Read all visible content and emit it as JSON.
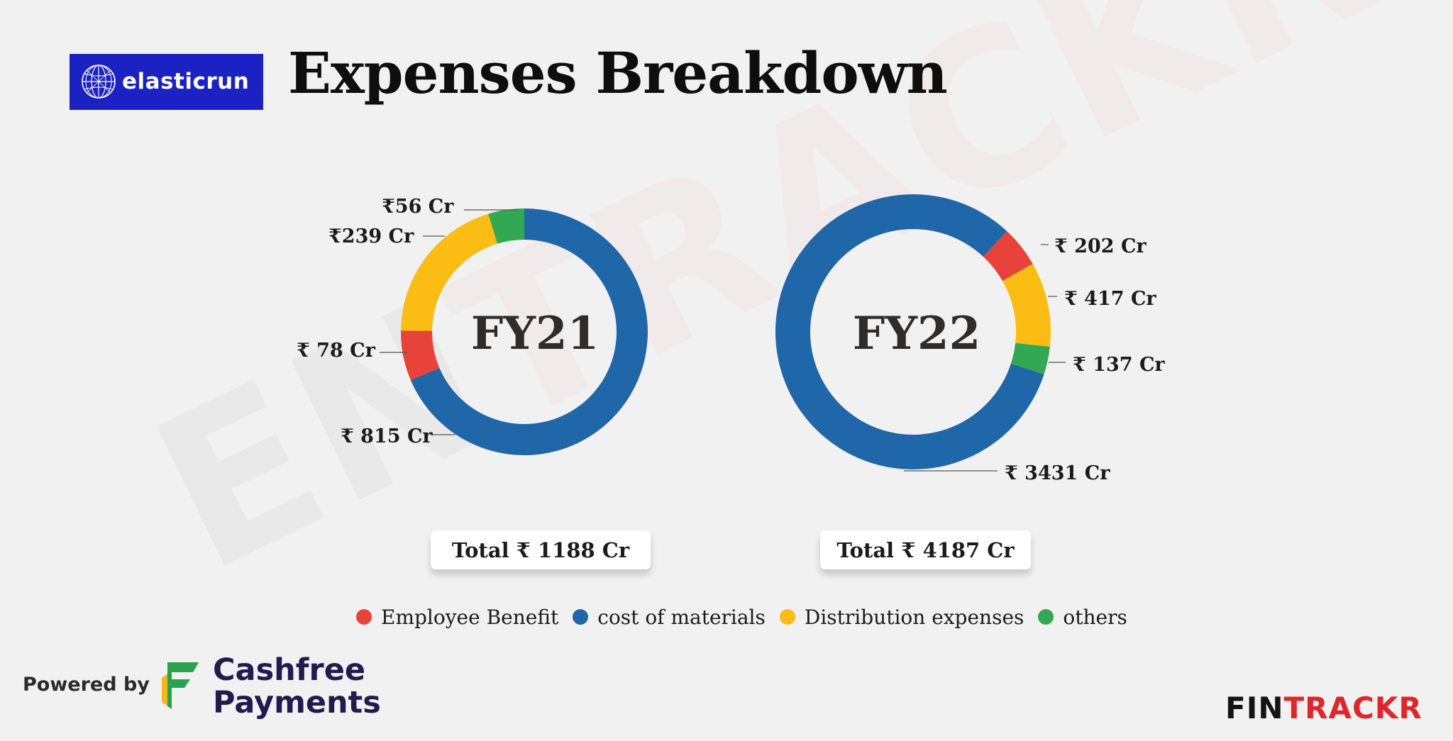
{
  "header": {
    "brand": "elasticrun",
    "title": "Expenses Breakdown"
  },
  "watermark": {
    "text_a": "EN",
    "text_b": "TRACKR"
  },
  "colors": {
    "employee_benefit": "#e8433a",
    "cost_of_materials": "#1f67a8",
    "distribution_expenses": "#fbbc13",
    "others": "#33a853",
    "brand_blue": "#1a22c4"
  },
  "chart_data": [
    {
      "type": "pie",
      "center_label": "FY21",
      "categories": [
        "Employee Benefit",
        "cost of materials",
        "Distribution expenses",
        "others"
      ],
      "values": [
        78,
        815,
        239,
        56
      ],
      "unit": "₹ Cr",
      "labels": [
        "₹ 78 Cr",
        "₹ 815 Cr",
        "₹239 Cr",
        "₹56 Cr"
      ],
      "total_label": "Total ₹ 1188 Cr"
    },
    {
      "type": "pie",
      "center_label": "FY22",
      "categories": [
        "Employee Benefit",
        "cost of materials",
        "Distribution expenses",
        "others"
      ],
      "values": [
        202,
        3431,
        417,
        137
      ],
      "unit": "₹ Cr",
      "labels": [
        "₹ 202 Cr",
        "₹ 3431 Cr",
        "₹ 417 Cr",
        "₹ 137 Cr"
      ],
      "total_label": "Total ₹ 4187 Cr"
    }
  ],
  "legend": [
    {
      "label": "Employee Benefit",
      "color": "#e8433a"
    },
    {
      "label": "cost of materials",
      "color": "#1f67a8"
    },
    {
      "label": "Distribution expenses",
      "color": "#fbbc13"
    },
    {
      "label": "others",
      "color": "#33a853"
    }
  ],
  "footer": {
    "powered_by": "Powered by",
    "partner_line1": "Cashfree",
    "partner_line2": "Payments",
    "fintrackr_a": "FIN",
    "fintrackr_b": "TRACKR"
  }
}
